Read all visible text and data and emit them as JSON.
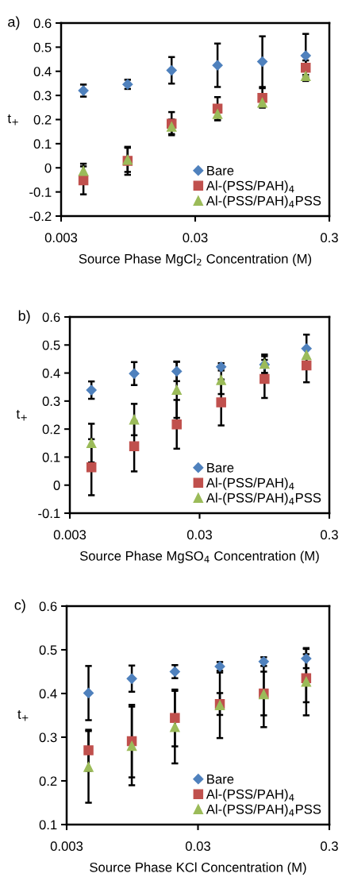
{
  "chart_data": [
    {
      "type": "scatter",
      "annotations": [
        "a)"
      ],
      "xlabel": "Source Phase MgCl$_{2}$ Concentration (M)",
      "ylabel": "t$_{+}$",
      "log": "x",
      "xlim": [
        0.003,
        0.3
      ],
      "xticks": [
        0.003,
        0.03,
        0.3
      ],
      "ylim": [
        -0.2,
        0.6
      ],
      "yticks": [
        -0.2,
        -0.1,
        0,
        0.1,
        0.2,
        0.3,
        0.4,
        0.5,
        0.6
      ],
      "grid": false,
      "legend": "bottom right",
      "x": [
        0.0044,
        0.0094,
        0.02,
        0.044,
        0.095,
        0.2
      ],
      "series": [
        {
          "name": "Bare",
          "color": "#4f81bd",
          "marker": "diamond",
          "values": [
            0.32,
            0.346,
            0.404,
            0.425,
            0.44,
            0.465
          ],
          "errors": [
            0.025,
            0.019,
            0.055,
            0.09,
            0.105,
            0.09
          ]
        },
        {
          "name": "Al-(PSS/PAH)$_{4}$",
          "color": "#c0504d",
          "marker": "square",
          "values": [
            -0.052,
            0.029,
            0.183,
            0.245,
            0.29,
            0.415
          ],
          "errors": [
            0.058,
            0.058,
            0.048,
            0.048,
            0.04,
            0.03
          ]
        },
        {
          "name": "Al-(PSS/PAH)$_{4}$PSS",
          "color": "#9bbb59",
          "marker": "triangle",
          "values": [
            -0.013,
            0.033,
            0.17,
            0.223,
            0.27,
            0.38
          ],
          "errors": [
            0.03,
            0.05,
            0.03,
            0.025,
            0.02,
            0.02
          ]
        }
      ]
    },
    {
      "type": "scatter",
      "annotations": [
        "b)"
      ],
      "xlabel": "Source Phase MgSO$_{4}$ Concentration (M)",
      "ylabel": "t$_{+}$",
      "log": "x",
      "xlim": [
        0.003,
        0.3
      ],
      "xticks": [
        0.003,
        0.03,
        0.3
      ],
      "ylim": [
        -0.1,
        0.6
      ],
      "yticks": [
        -0.1,
        0,
        0.1,
        0.2,
        0.3,
        0.4,
        0.5,
        0.6
      ],
      "grid": false,
      "legend": "bottom right",
      "x": [
        0.0044,
        0.0094,
        0.02,
        0.044,
        0.095,
        0.2
      ],
      "series": [
        {
          "name": "Bare",
          "color": "#4f81bd",
          "marker": "diamond",
          "values": [
            0.339,
            0.398,
            0.406,
            0.422,
            0.43,
            0.487
          ],
          "errors": [
            0.031,
            0.041,
            0.035,
            0.013,
            0.03,
            0.05
          ]
        },
        {
          "name": "Al-(PSS/PAH)$_{4}$",
          "color": "#c0504d",
          "marker": "square",
          "values": [
            0.064,
            0.139,
            0.217,
            0.295,
            0.379,
            0.427
          ],
          "errors": [
            0.1,
            0.09,
            0.087,
            0.082,
            0.068,
            0.06
          ]
        },
        {
          "name": "Al-(PSS/PAH)$_{4}$PSS",
          "color": "#9bbb59",
          "marker": "triangle",
          "values": [
            0.15,
            0.234,
            0.34,
            0.375,
            0.433,
            0.464
          ],
          "errors": [
            0.069,
            0.056,
            0.1,
            0.05,
            0.033,
            null
          ]
        }
      ]
    },
    {
      "type": "scatter",
      "annotations": [
        "c)"
      ],
      "xlabel": "Source Phase KCl Concentration (M)",
      "ylabel": "t$_{+}$",
      "log": "x",
      "xlim": [
        0.003,
        0.3
      ],
      "xticks": [
        0.003,
        0.03,
        0.3
      ],
      "ylim": [
        0.1,
        0.6
      ],
      "yticks": [
        0.1,
        0.2,
        0.3,
        0.4,
        0.5,
        0.6
      ],
      "grid": false,
      "legend": "bottom right",
      "x": [
        0.0044,
        0.0094,
        0.02,
        0.044,
        0.095,
        0.2
      ],
      "series": [
        {
          "name": "Bare",
          "color": "#4f81bd",
          "marker": "diamond",
          "values": [
            0.401,
            0.434,
            0.45,
            0.462,
            0.473,
            0.48
          ],
          "errors": [
            0.062,
            0.03,
            0.015,
            0.01,
            0.01,
            0.022
          ]
        },
        {
          "name": "Al-(PSS/PAH)$_{4}$",
          "color": "#c0504d",
          "marker": "square",
          "values": [
            0.27,
            0.291,
            0.344,
            0.376,
            0.4,
            0.435
          ],
          "errors": [
            0.047,
            0.083,
            0.065,
            0.025,
            0.05,
            0.055
          ]
        },
        {
          "name": "Al-(PSS/PAH)$_{4}$PSS",
          "color": "#9bbb59",
          "marker": "triangle",
          "values": [
            0.232,
            0.28,
            0.323,
            0.373,
            0.398,
            0.427
          ],
          "errors": [
            0.082,
            0.09,
            0.083,
            0.075,
            0.075,
            0.077
          ]
        }
      ]
    }
  ]
}
